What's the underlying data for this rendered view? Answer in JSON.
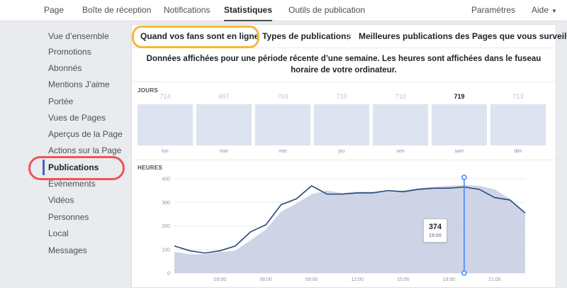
{
  "nav": {
    "tabs": [
      "Page",
      "Boîte de réception",
      "Notifications",
      "Statistiques",
      "Outils de publication"
    ],
    "active_tab": "Statistiques",
    "settings": "Paramètres",
    "help": "Aide"
  },
  "sidebar": {
    "items": [
      "Vue d’ensemble",
      "Promotions",
      "Abonnés",
      "Mentions J’aime",
      "Portée",
      "Vues de Pages",
      "Aperçus de la Page",
      "Actions sur la Page",
      "Publications",
      "Évènements",
      "Vidéos",
      "Personnes",
      "Local",
      "Messages"
    ],
    "active": "Publications"
  },
  "subtabs": {
    "items": [
      "Quand vos fans sont en ligne",
      "Types de publications",
      "Meilleures publications des Pages que vous surveillez"
    ],
    "active": "Quand vos fans sont en ligne"
  },
  "info_text": "Données affichées pour une période récente d’une semaine. Les heures sont affichées dans le fuseau horaire de votre ordinateur.",
  "days_section": {
    "label": "JOURS",
    "days": [
      {
        "label": "lun",
        "value": "714"
      },
      {
        "label": "mar",
        "value": "697"
      },
      {
        "label": "mer",
        "value": "703"
      },
      {
        "label": "jeu",
        "value": "710"
      },
      {
        "label": "ven",
        "value": "710"
      },
      {
        "label": "sam",
        "value": "719"
      },
      {
        "label": "dim",
        "value": "713"
      }
    ],
    "highlighted_day": "sam"
  },
  "hours_section": {
    "label": "HEURES",
    "tooltip": {
      "value": "374",
      "time": "19:00"
    }
  },
  "chart_data": {
    "type": "line",
    "ylim": [
      0,
      400
    ],
    "yticks": [
      "0",
      "100",
      "200",
      "300",
      "400"
    ],
    "xticks": [
      "03:00",
      "06:00",
      "09:00",
      "12:00",
      "15:00",
      "18:00",
      "21:00"
    ],
    "x": [
      0,
      1,
      2,
      3,
      4,
      5,
      6,
      7,
      8,
      9,
      10,
      11,
      12,
      13,
      14,
      15,
      16,
      17,
      18,
      19,
      20,
      21,
      22,
      23
    ],
    "series": [
      {
        "values": [
          115,
          95,
          85,
          95,
          115,
          175,
          205,
          290,
          315,
          370,
          335,
          335,
          340,
          340,
          350,
          345,
          355,
          360,
          360,
          365,
          355,
          320,
          310,
          255
        ]
      },
      {
        "values": [
          90,
          80,
          80,
          90,
          95,
          140,
          185,
          260,
          295,
          335,
          350,
          340,
          345,
          345,
          350,
          350,
          360,
          365,
          370,
          374,
          370,
          355,
          315,
          250
        ]
      }
    ],
    "colors": {
      "line": "#29487d",
      "area": "#c5cce0",
      "marker": "#4080ff"
    }
  }
}
